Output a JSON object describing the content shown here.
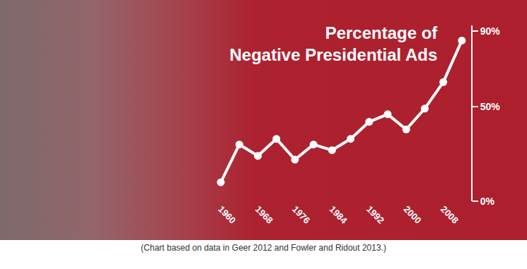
{
  "chart_data": {
    "type": "line",
    "title": "Percentage of\nNegative Presidential Ads",
    "caption": "(Chart based on data in Geer 2012 and Fowler and Ridout 2013.)",
    "categories": [
      "1960",
      null,
      "1968",
      null,
      "1976",
      null,
      "1984",
      null,
      "1992",
      null,
      "2000",
      null,
      "2008",
      null
    ],
    "values": [
      10,
      30,
      24,
      33,
      22,
      30,
      27,
      33,
      42,
      46,
      38,
      49,
      63,
      85
    ],
    "color": "#ffffff",
    "marker": "circle",
    "line_style": "solid",
    "ylim": [
      0,
      93
    ],
    "yticks": [
      {
        "value": 0,
        "label": "0%"
      },
      {
        "value": 50,
        "label": "50%"
      },
      {
        "value": 90,
        "label": "90%"
      }
    ],
    "grid": false
  }
}
